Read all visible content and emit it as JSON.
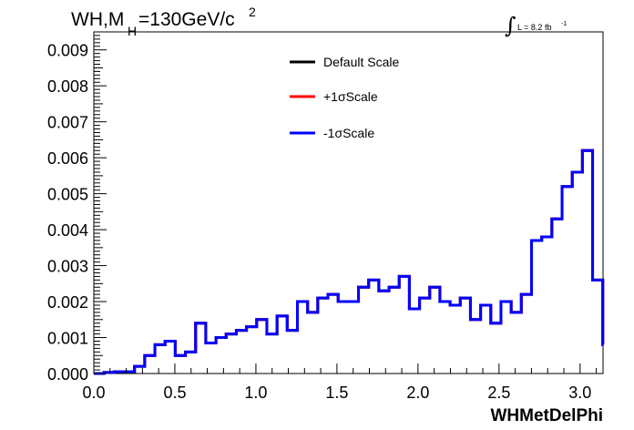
{
  "title_main": "WH,M",
  "title_sub": "H",
  "title_rest": "=130GeV/c",
  "title_sup": "2",
  "lumi_integral": "∫",
  "lumi_text": "L = 8.2 fb",
  "lumi_sup": "-1",
  "chart_data": {
    "type": "histogram-step",
    "xlabel": "WHMetDelPhi",
    "xlim": [
      0,
      3.1416
    ],
    "ylim": [
      0,
      0.0095
    ],
    "x_ticks": [
      "0.0",
      "0.5",
      "1.0",
      "1.5",
      "2.0",
      "2.5",
      "3.0"
    ],
    "x_tick_values": [
      0,
      0.5,
      1.0,
      1.5,
      2.0,
      2.5,
      3.0
    ],
    "y_ticks": [
      "0.000",
      "0.001",
      "0.002",
      "0.003",
      "0.004",
      "0.005",
      "0.006",
      "0.007",
      "0.008",
      "0.009"
    ],
    "y_tick_values": [
      0,
      0.001,
      0.002,
      0.003,
      0.004,
      0.005,
      0.006,
      0.007,
      0.008,
      0.009
    ],
    "bin_edges_start": 0,
    "bin_width": 0.0628,
    "series": [
      {
        "name": "Default Scale",
        "color": "#000000",
        "values": [
          0.0,
          3e-05,
          5e-05,
          5e-05,
          0.0002,
          0.0005,
          0.0008,
          0.0009,
          0.0005,
          0.0006,
          0.0014,
          0.00085,
          0.001,
          0.0011,
          0.0012,
          0.0013,
          0.0015,
          0.0011,
          0.0016,
          0.0012,
          0.002,
          0.0017,
          0.0021,
          0.0022,
          0.002,
          0.002,
          0.0024,
          0.0026,
          0.0023,
          0.0024,
          0.0027,
          0.0018,
          0.0021,
          0.0024,
          0.002,
          0.0019,
          0.0021,
          0.0015,
          0.0019,
          0.0014,
          0.002,
          0.0017,
          0.0022,
          0.0037,
          0.0038,
          0.0043,
          0.0052,
          0.0056,
          0.0062,
          0.0026,
          0.0008
        ]
      },
      {
        "name": "+1σScale",
        "color": "#ff0000",
        "values": [
          0.0,
          3e-05,
          5e-05,
          5e-05,
          0.0002,
          0.0005,
          0.0008,
          0.0009,
          0.0005,
          0.0006,
          0.0014,
          0.00085,
          0.001,
          0.0011,
          0.0012,
          0.0013,
          0.0015,
          0.0011,
          0.0016,
          0.0012,
          0.002,
          0.0017,
          0.0021,
          0.0022,
          0.002,
          0.002,
          0.0024,
          0.0026,
          0.0023,
          0.0024,
          0.0027,
          0.0018,
          0.0021,
          0.0024,
          0.002,
          0.0019,
          0.0021,
          0.0015,
          0.0019,
          0.0014,
          0.002,
          0.0017,
          0.0022,
          0.0037,
          0.0038,
          0.0043,
          0.0052,
          0.0056,
          0.0062,
          0.0026,
          0.0008
        ]
      },
      {
        "name": "-1σScale",
        "color": "#0000ff",
        "values": [
          0.0,
          3e-05,
          5e-05,
          5e-05,
          0.0002,
          0.0005,
          0.0008,
          0.0009,
          0.0005,
          0.0006,
          0.0014,
          0.00085,
          0.001,
          0.0011,
          0.0012,
          0.0013,
          0.0015,
          0.0011,
          0.0016,
          0.0012,
          0.002,
          0.0017,
          0.0021,
          0.0022,
          0.002,
          0.002,
          0.0024,
          0.0026,
          0.0023,
          0.0024,
          0.0027,
          0.0018,
          0.0021,
          0.0024,
          0.002,
          0.0019,
          0.0021,
          0.0015,
          0.0019,
          0.0014,
          0.002,
          0.0017,
          0.0022,
          0.0037,
          0.0038,
          0.0043,
          0.0052,
          0.0056,
          0.0062,
          0.0026,
          0.0008
        ]
      }
    ],
    "legend_position": "top-center",
    "grid": false
  }
}
